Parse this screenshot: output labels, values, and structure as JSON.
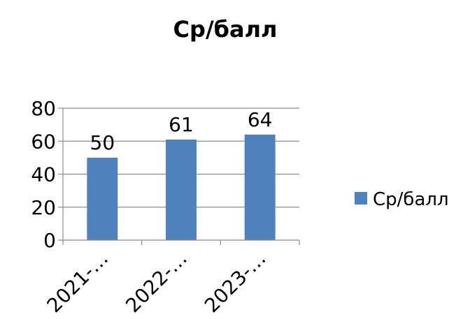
{
  "chart_data": {
    "type": "bar",
    "title": "Ср/балл",
    "categories": [
      "2021-…",
      "2022-…",
      "2023-…"
    ],
    "series": [
      {
        "name": "Ср/балл",
        "values": [
          50,
          61,
          64
        ],
        "color": "#4f81bd"
      }
    ],
    "data_labels": [
      "50",
      "61",
      "64"
    ],
    "ylim": [
      0,
      80
    ],
    "yticks": [
      0,
      20,
      40,
      60,
      80
    ],
    "ytick_labels": [
      "0",
      "20",
      "40",
      "60",
      "80"
    ],
    "xlabel": "",
    "ylabel": "",
    "grid": true,
    "legend_position": "right"
  }
}
